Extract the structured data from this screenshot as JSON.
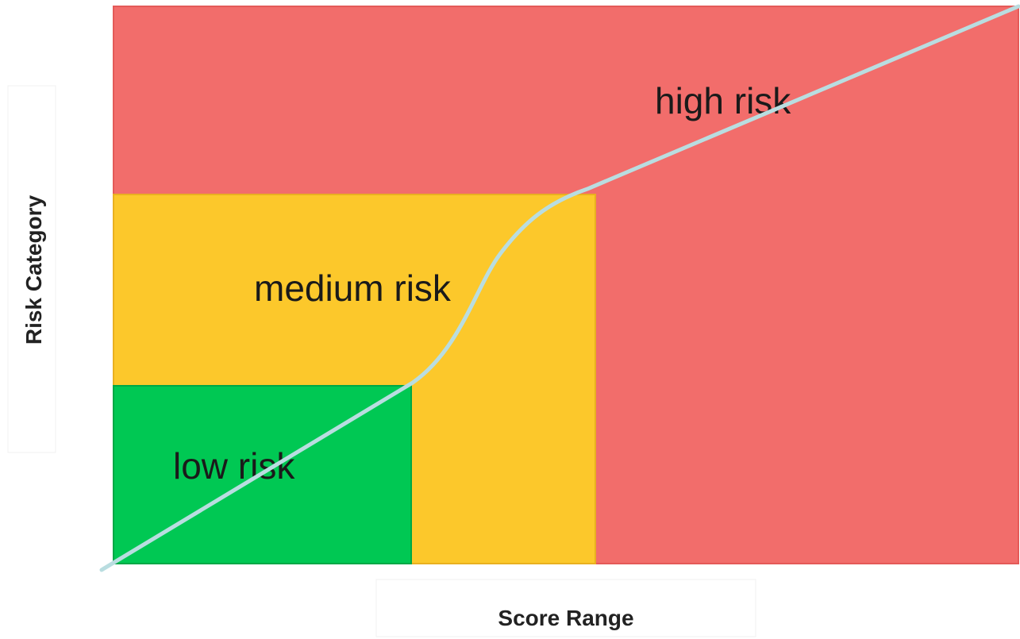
{
  "diagram": {
    "zones": [
      {
        "key": "high",
        "label": "high risk",
        "color": "#f26d6b",
        "border": "#e45a58"
      },
      {
        "key": "medium",
        "label": "medium risk",
        "color": "#fcc82b",
        "border": "#e9b01f"
      },
      {
        "key": "low",
        "label": "low risk",
        "color": "#00c853",
        "border": "#00a846"
      }
    ],
    "curve_color": "#b9dde0",
    "x_axis_label": "Score Range",
    "y_axis_label": "Risk Category"
  }
}
